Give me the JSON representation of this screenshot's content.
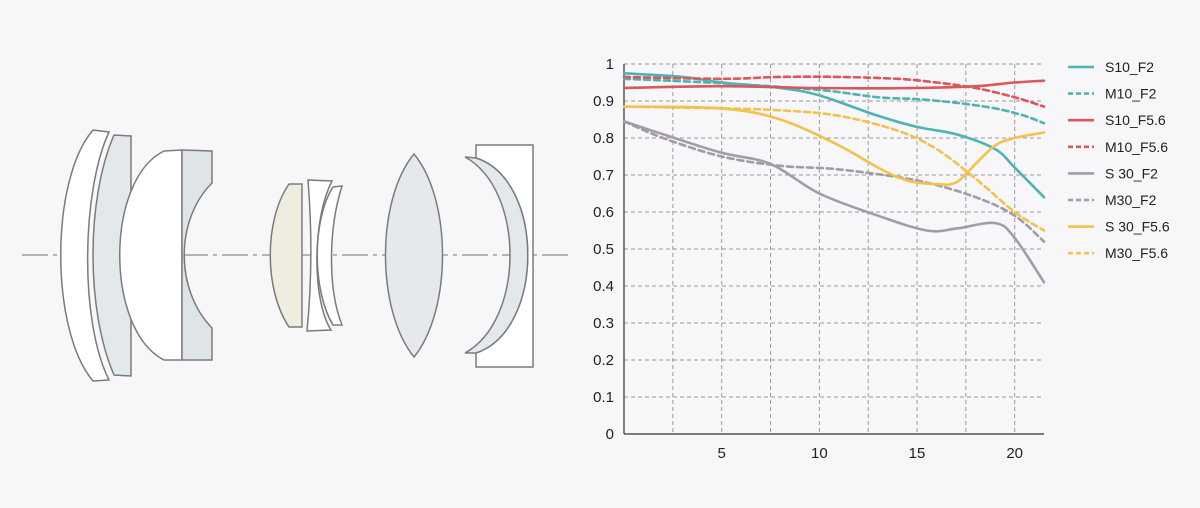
{
  "lens_diagram": {
    "glass_colors": {
      "clear": "#ffffff",
      "light_gray": "#e6e9ec",
      "gray": "#dfe4e6",
      "tinted": "#efece0",
      "outline": "#7b7b7b",
      "axis": "#8e8e8e"
    }
  },
  "chart_data": {
    "type": "line",
    "title": "",
    "xlabel": "",
    "ylabel": "",
    "xlim": [
      0,
      21.5
    ],
    "ylim": [
      0,
      1
    ],
    "x_ticks": [
      5,
      10,
      15,
      20
    ],
    "y_ticks": [
      "0",
      "0.1",
      "0.2",
      "0.3",
      "0.4",
      "0.5",
      "0.6",
      "0.7",
      "0.8",
      "0.9",
      "1"
    ],
    "grid": true,
    "legend_position": "right",
    "series": [
      {
        "name": "S10_F2",
        "color": "#4db3b3",
        "dash": false,
        "points": [
          [
            0,
            0.975
          ],
          [
            3,
            0.965
          ],
          [
            5,
            0.95
          ],
          [
            8,
            0.935
          ],
          [
            10,
            0.915
          ],
          [
            13,
            0.86
          ],
          [
            15,
            0.83
          ],
          [
            17,
            0.81
          ],
          [
            19,
            0.77
          ],
          [
            20,
            0.72
          ],
          [
            21.5,
            0.64
          ]
        ]
      },
      {
        "name": "M10_F2",
        "color": "#4db3b3",
        "dash": true,
        "points": [
          [
            0,
            0.96
          ],
          [
            5,
            0.948
          ],
          [
            10,
            0.93
          ],
          [
            13,
            0.91
          ],
          [
            15,
            0.905
          ],
          [
            17,
            0.895
          ],
          [
            19,
            0.88
          ],
          [
            20.5,
            0.86
          ],
          [
            21.5,
            0.84
          ]
        ]
      },
      {
        "name": "S10_F5.6",
        "color": "#d9585a",
        "dash": false,
        "points": [
          [
            0,
            0.935
          ],
          [
            5,
            0.94
          ],
          [
            10,
            0.935
          ],
          [
            15,
            0.935
          ],
          [
            18,
            0.94
          ],
          [
            20,
            0.95
          ],
          [
            21.5,
            0.955
          ]
        ]
      },
      {
        "name": "M10_F5.6",
        "color": "#d9585a",
        "dash": true,
        "points": [
          [
            0,
            0.965
          ],
          [
            5,
            0.96
          ],
          [
            8,
            0.965
          ],
          [
            11,
            0.965
          ],
          [
            14,
            0.96
          ],
          [
            16,
            0.95
          ],
          [
            18,
            0.935
          ],
          [
            20,
            0.91
          ],
          [
            21.5,
            0.885
          ]
        ]
      },
      {
        "name": "S 30_F2",
        "color": "#a39ba7",
        "dash": false,
        "points": [
          [
            0,
            0.845
          ],
          [
            2,
            0.81
          ],
          [
            5,
            0.76
          ],
          [
            7.5,
            0.73
          ],
          [
            10,
            0.65
          ],
          [
            13,
            0.59
          ],
          [
            15.5,
            0.55
          ],
          [
            17,
            0.555
          ],
          [
            19,
            0.57
          ],
          [
            20,
            0.53
          ],
          [
            21.5,
            0.41
          ]
        ]
      },
      {
        "name": "M30_F2",
        "color": "#a39ba7",
        "dash": true,
        "points": [
          [
            0,
            0.845
          ],
          [
            2,
            0.8
          ],
          [
            5,
            0.75
          ],
          [
            8,
            0.725
          ],
          [
            11,
            0.715
          ],
          [
            15,
            0.685
          ],
          [
            18,
            0.64
          ],
          [
            20,
            0.59
          ],
          [
            21.5,
            0.52
          ]
        ]
      },
      {
        "name": "S 30_F5.6",
        "color": "#f2c24d",
        "dash": false,
        "points": [
          [
            0,
            0.885
          ],
          [
            5,
            0.88
          ],
          [
            8,
            0.85
          ],
          [
            11,
            0.78
          ],
          [
            13,
            0.72
          ],
          [
            14.5,
            0.685
          ],
          [
            16,
            0.675
          ],
          [
            17,
            0.68
          ],
          [
            18,
            0.73
          ],
          [
            19,
            0.78
          ],
          [
            20,
            0.8
          ],
          [
            21.5,
            0.815
          ]
        ]
      },
      {
        "name": "M30_F5.6",
        "color": "#f2c24d",
        "dash": true,
        "points": [
          [
            0,
            0.885
          ],
          [
            5,
            0.88
          ],
          [
            8,
            0.875
          ],
          [
            11,
            0.86
          ],
          [
            14,
            0.82
          ],
          [
            16,
            0.77
          ],
          [
            18,
            0.69
          ],
          [
            20,
            0.6
          ],
          [
            21.5,
            0.55
          ]
        ]
      }
    ]
  }
}
